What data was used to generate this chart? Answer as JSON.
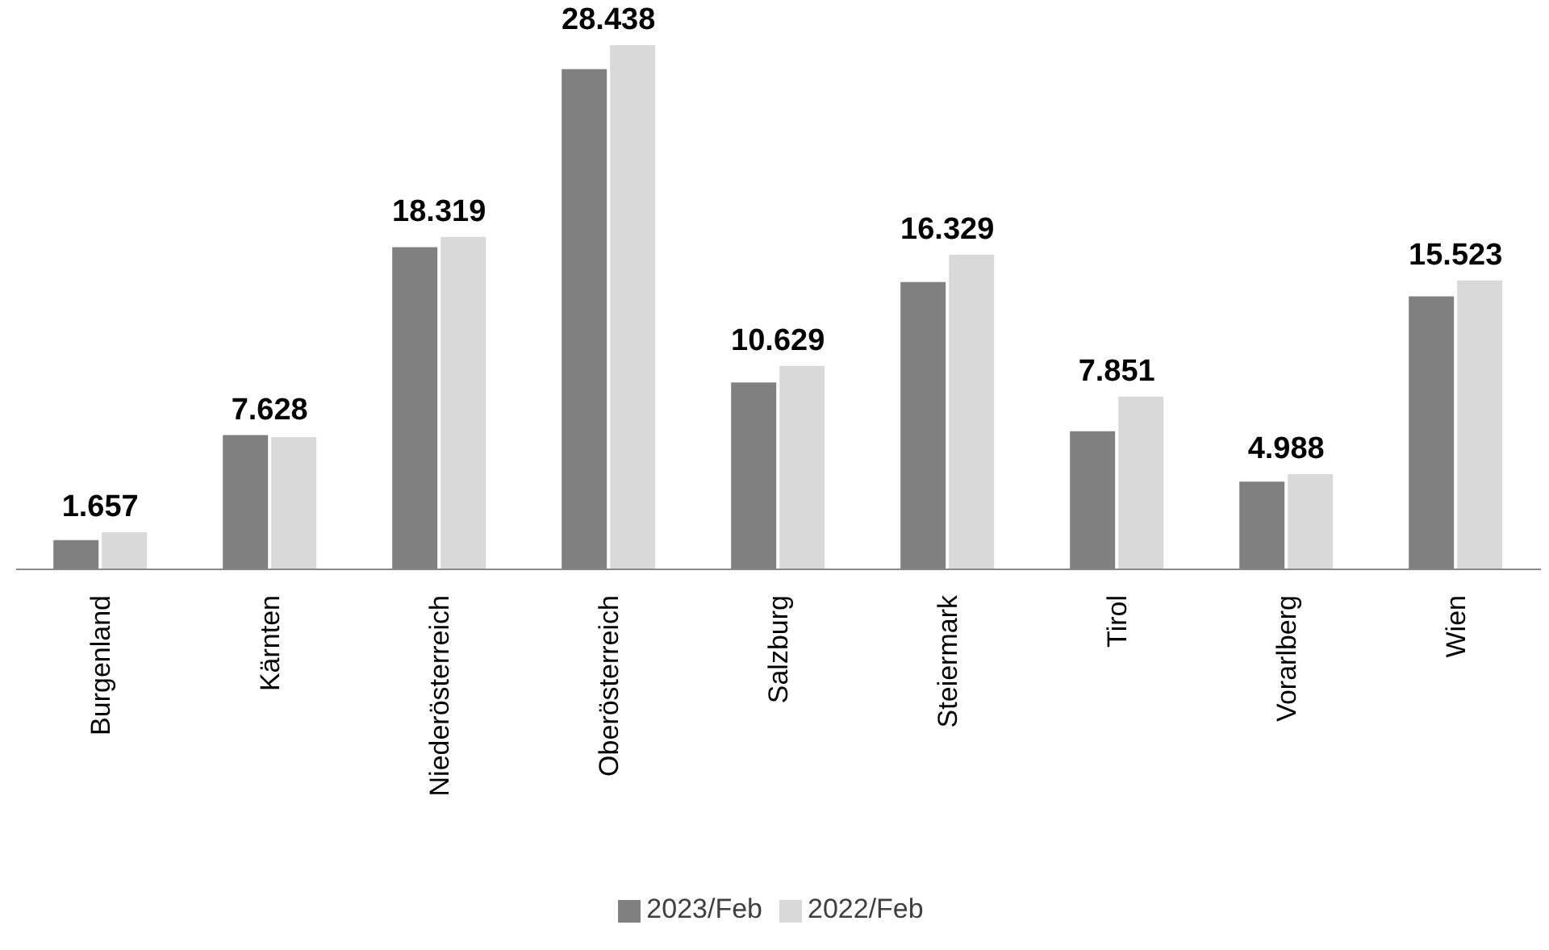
{
  "chart_data": {
    "type": "bar",
    "categories": [
      "Burgenland",
      "Kärnten",
      "Niederösterreich",
      "Oberösterreich",
      "Salzburg",
      "Steiermark",
      "Tirol",
      "Vorarlberg",
      "Wien"
    ],
    "series": [
      {
        "name": "2023/Feb",
        "color": "#808080",
        "values": [
          1657,
          7628,
          18319,
          28438,
          10629,
          16329,
          7851,
          4988,
          15523
        ],
        "value_labels": [
          "1.657",
          "7.628",
          "18.319",
          "28.438",
          "10.629",
          "16.329",
          "7.851",
          "4.988",
          "15.523"
        ]
      },
      {
        "name": "2022/Feb",
        "color": "#d9d9d9",
        "values": [
          2110,
          7520,
          18900,
          29800,
          11560,
          17890,
          9820,
          5410,
          16420
        ]
      }
    ],
    "legend": "bottom"
  }
}
